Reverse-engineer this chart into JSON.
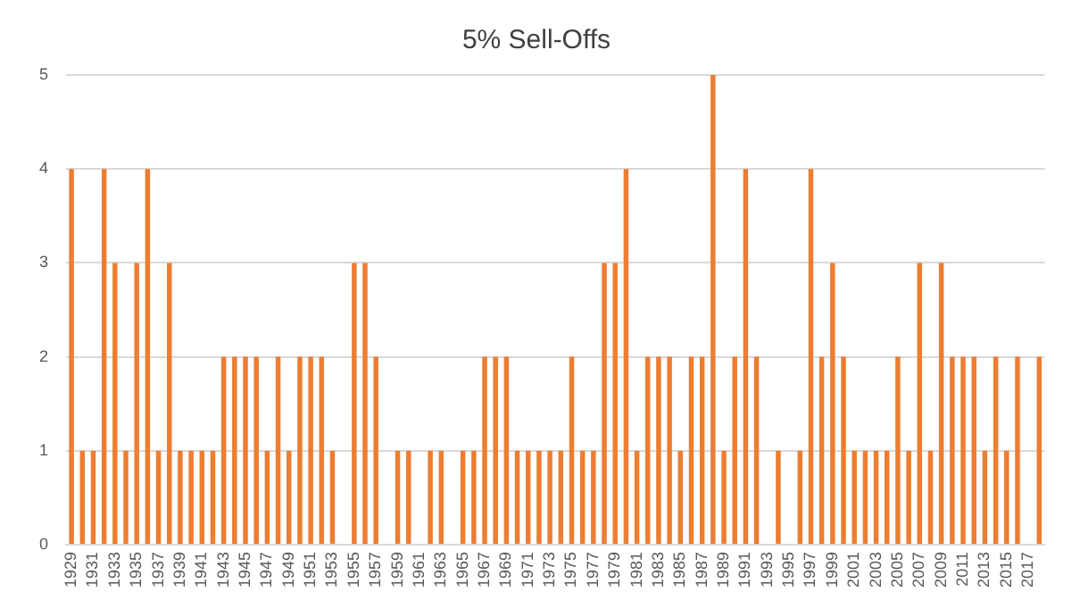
{
  "chart_data": {
    "type": "bar",
    "title": "5% Sell-Offs",
    "categories": [
      "1929",
      null,
      "1931",
      null,
      "1933",
      null,
      "1935",
      null,
      "1937",
      null,
      "1939",
      null,
      "1941",
      null,
      "1943",
      null,
      "1945",
      null,
      "1947",
      null,
      "1949",
      null,
      "1951",
      null,
      "1953",
      null,
      "1955",
      null,
      "1957",
      null,
      "1959",
      null,
      "1961",
      null,
      "1963",
      null,
      "1965",
      null,
      "1967",
      null,
      "1969",
      null,
      "1971",
      null,
      "1973",
      null,
      "1975",
      null,
      "1977",
      null,
      "1979",
      null,
      "1981",
      null,
      "1983",
      null,
      "1985",
      null,
      "1987",
      null,
      "1989",
      null,
      "1991",
      null,
      "1993",
      null,
      "1995",
      null,
      "1997",
      null,
      "1999",
      null,
      "2001",
      null,
      "2003",
      null,
      "2005",
      null,
      "2007",
      null,
      "2009",
      null,
      "2011",
      null,
      "2013",
      null,
      "2015",
      null,
      "2017",
      null
    ],
    "values": [
      4,
      1,
      1,
      4,
      3,
      1,
      3,
      4,
      1,
      3,
      1,
      1,
      1,
      1,
      2,
      2,
      2,
      2,
      1,
      2,
      1,
      2,
      2,
      2,
      1,
      0,
      3,
      3,
      2,
      0,
      1,
      1,
      0,
      1,
      1,
      0,
      1,
      1,
      2,
      2,
      2,
      1,
      1,
      1,
      1,
      1,
      2,
      1,
      1,
      3,
      3,
      4,
      1,
      2,
      2,
      2,
      1,
      2,
      2,
      5,
      1,
      2,
      4,
      2,
      0,
      1,
      0,
      1,
      4,
      2,
      3,
      2,
      1,
      1,
      1,
      1,
      2,
      1,
      3,
      1,
      3,
      2,
      2,
      2,
      1,
      2,
      1,
      2,
      0,
      2
    ],
    "color": "#ed7d31",
    "ylim": [
      0,
      5
    ],
    "yticks": [
      0,
      1,
      2,
      3,
      4,
      5
    ],
    "grid": "y"
  }
}
